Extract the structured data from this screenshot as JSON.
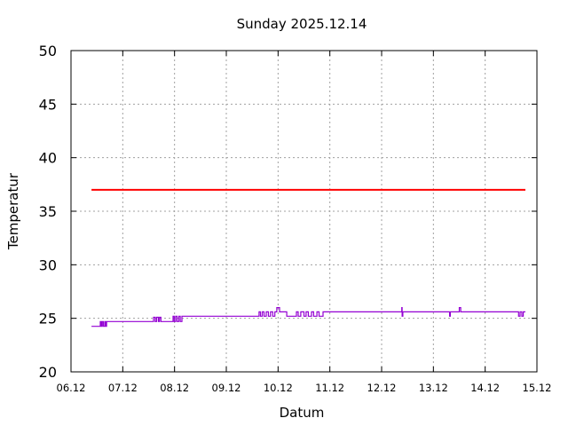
{
  "chart_data": {
    "type": "line",
    "title": "Sunday 2025.12.14",
    "xlabel": "Datum",
    "ylabel": "Temperatur",
    "ylim": [
      20,
      50
    ],
    "yticks": [
      "20",
      "25",
      "30",
      "35",
      "40",
      "45",
      "50"
    ],
    "xlim": [
      "2025-12-06 00:00",
      "2025-12-15 00:00"
    ],
    "xticks": [
      "06.12",
      "07.12",
      "08.12",
      "09.12",
      "10.12",
      "11.12",
      "12.12",
      "13.12",
      "14.12",
      "15.12"
    ],
    "grid": true,
    "series": [
      {
        "color": "#ff0000",
        "style": "steps",
        "points": [
          [
            "2025-12-06 09:30",
            37
          ],
          [
            "2025-12-14 18:40",
            37
          ]
        ]
      },
      {
        "color": "#9400d3",
        "style": "steps",
        "points": [
          [
            "2025-12-06 09:30",
            24.25
          ],
          [
            "2025-12-06 13:35",
            24.7
          ],
          [
            "2025-12-06 14:00",
            24.25
          ],
          [
            "2025-12-06 14:30",
            24.7
          ],
          [
            "2025-12-06 15:00",
            24.25
          ],
          [
            "2025-12-06 15:40",
            24.7
          ],
          [
            "2025-12-06 16:00",
            24.25
          ],
          [
            "2025-12-06 16:30",
            24.7
          ],
          [
            "2025-12-07 14:15",
            25.1
          ],
          [
            "2025-12-07 15:00",
            24.7
          ],
          [
            "2025-12-07 15:40",
            25.1
          ],
          [
            "2025-12-07 16:30",
            24.7
          ],
          [
            "2025-12-07 17:00",
            25.1
          ],
          [
            "2025-12-07 17:40",
            24.7
          ],
          [
            "2025-12-07 23:20",
            25.2
          ],
          [
            "2025-12-07 23:50",
            24.7
          ],
          [
            "2025-12-08 00:30",
            25.2
          ],
          [
            "2025-12-08 01:10",
            24.7
          ],
          [
            "2025-12-08 02:00",
            25.2
          ],
          [
            "2025-12-08 02:40",
            24.7
          ],
          [
            "2025-12-08 03:25",
            25.2
          ],
          [
            "2025-12-09 15:10",
            25.6
          ],
          [
            "2025-12-09 15:50",
            25.2
          ],
          [
            "2025-12-09 16:40",
            25.6
          ],
          [
            "2025-12-09 17:30",
            25.2
          ],
          [
            "2025-12-09 18:30",
            25.6
          ],
          [
            "2025-12-09 19:30",
            25.2
          ],
          [
            "2025-12-09 20:30",
            25.6
          ],
          [
            "2025-12-09 21:30",
            25.2
          ],
          [
            "2025-12-09 22:30",
            25.6
          ],
          [
            "2025-12-09 23:25",
            26.0
          ],
          [
            "2025-12-10 00:40",
            25.6
          ],
          [
            "2025-12-10 04:00",
            25.2
          ],
          [
            "2025-12-10 08:30",
            25.6
          ],
          [
            "2025-12-10 09:20",
            25.2
          ],
          [
            "2025-12-10 10:30",
            25.6
          ],
          [
            "2025-12-10 12:00",
            25.2
          ],
          [
            "2025-12-10 13:00",
            25.6
          ],
          [
            "2025-12-10 14:00",
            25.2
          ],
          [
            "2025-12-10 15:30",
            25.6
          ],
          [
            "2025-12-10 16:30",
            25.2
          ],
          [
            "2025-12-10 18:00",
            25.6
          ],
          [
            "2025-12-10 19:00",
            25.2
          ],
          [
            "2025-12-10 20:50",
            25.6
          ],
          [
            "2025-12-12 09:20",
            26.0
          ],
          [
            "2025-12-12 09:30",
            25.2
          ],
          [
            "2025-12-12 09:50",
            25.6
          ],
          [
            "2025-12-13 07:30",
            25.2
          ],
          [
            "2025-12-13 07:50",
            25.6
          ],
          [
            "2025-12-13 12:00",
            26.0
          ],
          [
            "2025-12-13 12:40",
            25.6
          ],
          [
            "2025-12-14 15:30",
            25.2
          ],
          [
            "2025-12-14 16:10",
            25.6
          ],
          [
            "2025-12-14 17:00",
            25.2
          ],
          [
            "2025-12-14 17:40",
            25.6
          ],
          [
            "2025-12-14 18:40",
            25.6
          ]
        ]
      }
    ]
  }
}
